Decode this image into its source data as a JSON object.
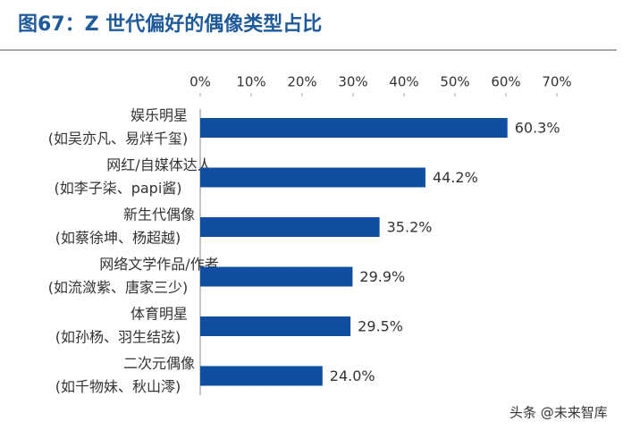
{
  "chart_data": {
    "type": "hbar",
    "title": "图67：Z 世代偏好的偶像类型占比",
    "categories": [
      [
        "娱乐明星",
        "(如吴亦凡、易烊千玺)"
      ],
      [
        "网红/自媒体达人",
        "(如李子柒、papi酱)"
      ],
      [
        "新生代偶像",
        "(如蔡徐坤、杨超越)"
      ],
      [
        "网络文学作品/作者",
        "(如流潋紫、唐家三少)"
      ],
      [
        "体育明星",
        "(如孙杨、羽生结弦)"
      ],
      [
        "二次元偶像",
        "(如千物妹、秋山澪)"
      ]
    ],
    "values": [
      60.3,
      44.2,
      35.2,
      29.9,
      29.5,
      24.0
    ],
    "value_labels": [
      "60.3%",
      "44.2%",
      "35.2%",
      "29.9%",
      "29.5%",
      "24.0%"
    ],
    "color": "#0f4ea0",
    "xlim": [
      0,
      70
    ],
    "xticks": [
      {
        "value": 0,
        "label": "0%"
      },
      {
        "value": 10,
        "label": "10%"
      },
      {
        "value": 20,
        "label": "20%"
      },
      {
        "value": 30,
        "label": "30%"
      },
      {
        "value": 40,
        "label": "40%"
      },
      {
        "value": 50,
        "label": "50%"
      },
      {
        "value": 60,
        "label": "60%"
      },
      {
        "value": 70,
        "label": "70%"
      }
    ],
    "watermark": "头条 @未来智库"
  }
}
